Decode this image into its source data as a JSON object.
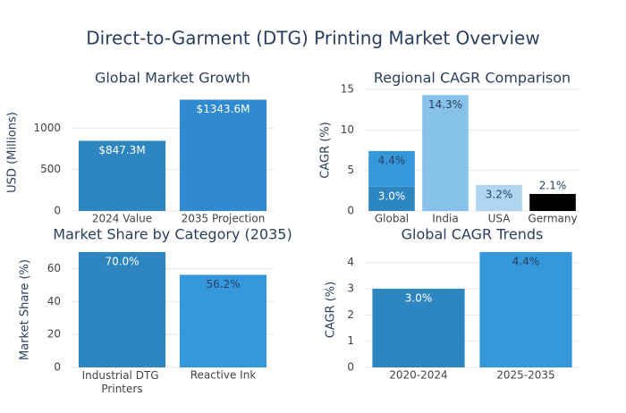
{
  "title": "Direct-to-Garment (DTG) Printing Market Overview",
  "chart_data": [
    {
      "type": "bar",
      "title": "Global Market Growth",
      "y_label": "USD (Millions)",
      "categories": [
        "2024 Value",
        "2035 Projection"
      ],
      "series": [
        {
          "colors": [
            "#2e86c1",
            "#2f8ad0"
          ],
          "values": [
            847.3,
            1343.6
          ],
          "value_labels": [
            "$847.3M",
            "$1343.6M"
          ]
        }
      ],
      "ylim": [
        0,
        1414
      ],
      "yticks": [
        0,
        500,
        1000
      ],
      "grid": true
    },
    {
      "type": "bar",
      "title": "Regional CAGR Comparison",
      "y_label": "CAGR (%)",
      "categories": [
        "Global",
        "India",
        "USA",
        "Germany"
      ],
      "series": [
        {
          "colors": [
            "#2e86c1",
            "#2e86c1",
            "#2e86c1",
            "#2e86c1"
          ],
          "values": [
            3.0,
            null,
            null,
            null
          ],
          "value_labels": [
            "3.0%",
            null,
            null,
            null
          ]
        },
        {
          "colors": [
            "#3498db",
            "#85c1e9",
            "#aed6f1",
            "#000000"
          ],
          "values": [
            4.4,
            14.3,
            3.2,
            2.1
          ],
          "value_labels": [
            "4.4%",
            "14.3%",
            "3.2%",
            "2.1%"
          ]
        }
      ],
      "ylim": [
        0,
        15
      ],
      "yticks": [
        0,
        5,
        10,
        15
      ],
      "grid": true
    },
    {
      "type": "bar",
      "title": "Market Share by Category (2035)",
      "y_label": "Market Share (%)",
      "categories": [
        "Industrial DTG Printers",
        "Reactive Ink"
      ],
      "series": [
        {
          "colors": [
            "#2e86c1",
            "#3498db"
          ],
          "values": [
            70.0,
            56.2
          ],
          "value_labels": [
            "70.0%",
            "56.2%"
          ]
        }
      ],
      "ylim": [
        0,
        70
      ],
      "yticks": [
        0,
        20,
        40,
        60
      ],
      "grid": true
    },
    {
      "type": "bar",
      "title": "Global CAGR Trends",
      "y_label": "CAGR (%)",
      "categories": [
        "2020-2024",
        "2025-2035"
      ],
      "series": [
        {
          "colors": [
            "#2e86c1",
            "#3498db"
          ],
          "values": [
            3.0,
            4.4
          ],
          "value_labels": [
            "3.0%",
            "4.4%"
          ]
        }
      ],
      "ylim": [
        0,
        4.4
      ],
      "yticks": [
        0,
        1,
        2,
        3,
        4
      ],
      "grid": true
    }
  ]
}
